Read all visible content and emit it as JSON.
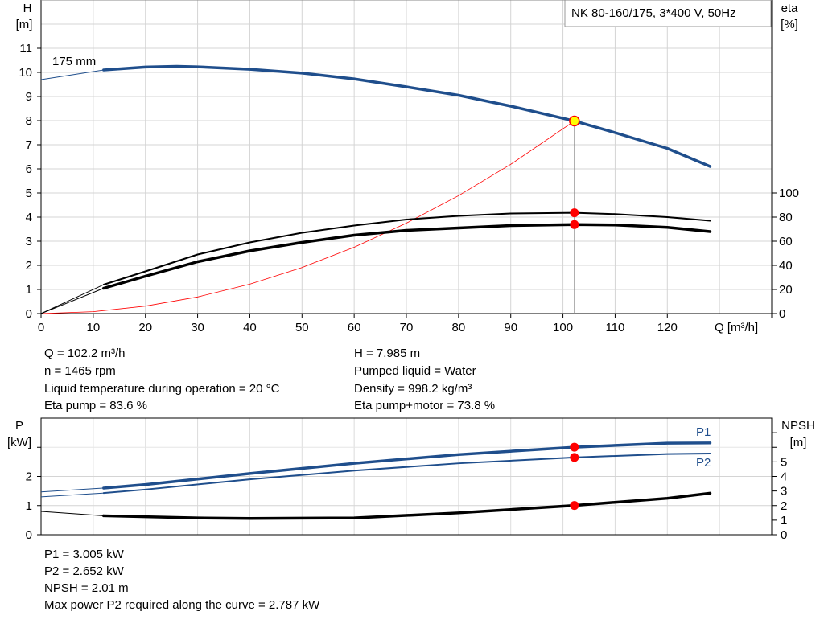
{
  "chart_data": [
    {
      "type": "line",
      "title": "NK 80-160/175, 3*400 V, 50Hz",
      "xlabel": "Q [m³/h]",
      "ylabel_left": [
        "H",
        "[m]"
      ],
      "ylabel_right": [
        "eta",
        "[%]"
      ],
      "xlim": [
        0,
        140
      ],
      "ylim_left": [
        0,
        13
      ],
      "ylim_right": [
        0,
        260
      ],
      "x_ticks": [
        0,
        10,
        20,
        30,
        40,
        50,
        60,
        70,
        80,
        90,
        100,
        110,
        120
      ],
      "y_ticks_left": [
        0,
        1,
        2,
        3,
        4,
        5,
        6,
        7,
        8,
        9,
        10,
        11
      ],
      "y_ticks_right": [
        0,
        20,
        40,
        60,
        80,
        100
      ],
      "grid": true,
      "curve_label": "175 mm",
      "series": [
        {
          "key": "H",
          "axis": "left",
          "color": "#1f4e8c",
          "x": [
            0,
            12,
            20,
            26,
            30,
            40,
            50,
            60,
            70,
            80,
            90,
            102.2,
            110,
            120,
            128.2
          ],
          "values": [
            9.7,
            10.1,
            10.22,
            10.25,
            10.23,
            10.13,
            9.97,
            9.73,
            9.4,
            9.05,
            8.6,
            7.985,
            7.5,
            6.85,
            6.1
          ]
        },
        {
          "key": "eta_pump",
          "axis": "right",
          "color": "#000000",
          "x": [
            0,
            12,
            20,
            30,
            40,
            50,
            60,
            70,
            80,
            90,
            102.2,
            110,
            120,
            128.2
          ],
          "values": [
            0,
            24,
            35,
            49,
            59,
            67,
            73,
            78,
            81,
            83,
            83.6,
            82.5,
            80,
            77
          ]
        },
        {
          "key": "eta_pump_motor",
          "axis": "right",
          "color": "#000000",
          "x": [
            0,
            12,
            20,
            30,
            40,
            50,
            60,
            70,
            80,
            90,
            102.2,
            110,
            120,
            128.2
          ],
          "values": [
            0,
            21,
            31,
            43,
            52,
            59,
            65,
            69,
            71,
            73,
            73.8,
            73.5,
            71.5,
            68
          ]
        },
        {
          "key": "system_curve",
          "axis": "left",
          "color": "#ff0000",
          "x": [
            0,
            10,
            20,
            30,
            40,
            50,
            60,
            70,
            80,
            90,
            102.2
          ],
          "values": [
            0,
            0.08,
            0.31,
            0.69,
            1.22,
            1.91,
            2.75,
            3.75,
            4.89,
            6.19,
            7.985
          ]
        }
      ],
      "operating_point": {
        "Q": 102.2,
        "H": 7.985,
        "eta_pump": 83.6,
        "eta_pump_motor": 73.8
      }
    },
    {
      "type": "line",
      "ylabel_left": [
        "P",
        "[kW]"
      ],
      "ylabel_right": [
        "NPSH",
        "[m]"
      ],
      "xlim": [
        0,
        140
      ],
      "ylim_left": [
        0,
        4
      ],
      "ylim_right": [
        0,
        8
      ],
      "y_ticks_left": [
        0,
        1,
        2
      ],
      "y_ticks_right": [
        0,
        1,
        2,
        3,
        4,
        5
      ],
      "grid": true,
      "series": [
        {
          "key": "P1",
          "name": "P1",
          "axis": "left",
          "color": "#1f4e8c",
          "x": [
            0,
            12,
            20,
            40,
            60,
            80,
            102.2,
            120,
            128.2
          ],
          "values": [
            1.47,
            1.6,
            1.72,
            2.1,
            2.45,
            2.75,
            3.005,
            3.14,
            3.15
          ]
        },
        {
          "key": "P2",
          "name": "P2",
          "axis": "left",
          "color": "#1f4e8c",
          "x": [
            0,
            12,
            20,
            40,
            60,
            80,
            102.2,
            120,
            128.2
          ],
          "values": [
            1.3,
            1.43,
            1.55,
            1.9,
            2.2,
            2.45,
            2.652,
            2.77,
            2.787
          ]
        },
        {
          "key": "NPSH",
          "axis": "right",
          "color": "#000000",
          "x": [
            0,
            12,
            30,
            40,
            60,
            80,
            102.2,
            120,
            128.2
          ],
          "values": [
            1.6,
            1.3,
            1.15,
            1.12,
            1.15,
            1.5,
            2.01,
            2.5,
            2.85
          ]
        }
      ],
      "operating_point": {
        "Q": 102.2,
        "P1": 3.005,
        "P2": 2.652,
        "NPSH": 2.01
      }
    }
  ],
  "info_top": {
    "left": [
      "Q = 102.2 m³/h",
      "n = 1465 rpm",
      "Liquid temperature during operation = 20 °C",
      "Eta pump = 83.6 %"
    ],
    "right": [
      "H = 7.985 m",
      "Pumped liquid = Water",
      "Density = 998.2 kg/m³",
      "Eta pump+motor = 73.8 %"
    ]
  },
  "info_bottom": [
    "P1 = 3.005 kW",
    "P2 = 2.652 kW",
    "NPSH = 2.01 m",
    "Max power P2 required along the curve = 2.787 kW"
  ]
}
